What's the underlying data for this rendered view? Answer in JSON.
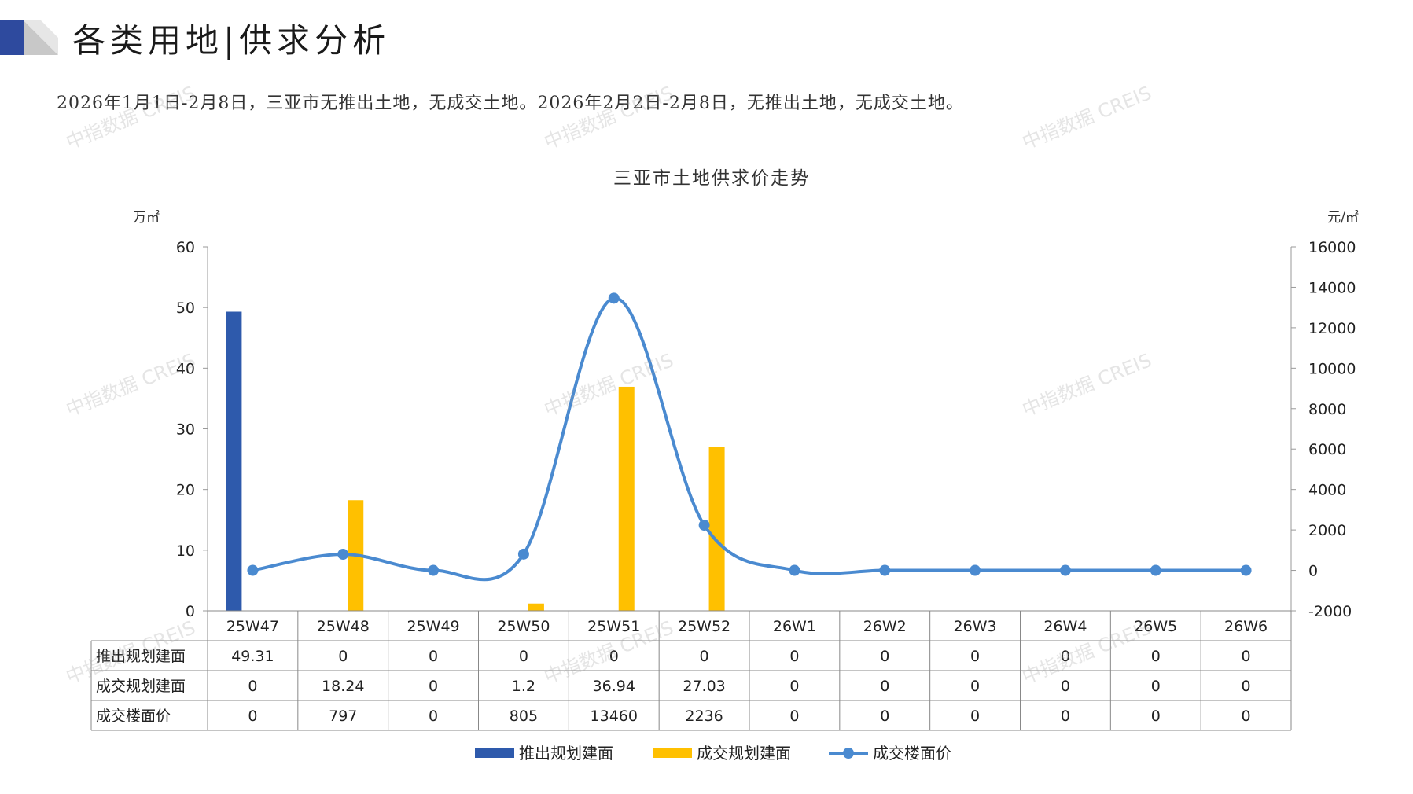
{
  "header": {
    "title": "各类用地|供求分析",
    "summary": "2026年1月1日-2月8日，三亚市无推出土地，无成交土地。2026年2月2日-2月8日，无推出土地，无成交土地。"
  },
  "watermark": "中指数据 CREIS",
  "colors": {
    "supply": "#2e5aac",
    "deal": "#ffc000",
    "price": "#4a8ad0",
    "logo_dark": "#2e4a9e",
    "logo_light": "#c8c8c8"
  },
  "chart_data": {
    "type": "bar",
    "title": "三亚市土地供求价走势",
    "y_left_unit": "万㎡",
    "y_right_unit": "元/㎡",
    "ylim_left": [
      0,
      60
    ],
    "ylim_right": [
      -2000,
      16000
    ],
    "yticks_left": [
      0,
      10,
      20,
      30,
      40,
      50,
      60
    ],
    "yticks_right": [
      -2000,
      0,
      2000,
      4000,
      6000,
      8000,
      10000,
      12000,
      14000,
      16000
    ],
    "categories": [
      "25W47",
      "25W48",
      "25W49",
      "25W50",
      "25W51",
      "25W52",
      "26W1",
      "26W2",
      "26W3",
      "26W4",
      "26W5",
      "26W6"
    ],
    "series": [
      {
        "name": "推出规划建面",
        "type": "bar",
        "axis": "left",
        "values": [
          49.31,
          0,
          0,
          0,
          0,
          0,
          0,
          0,
          0,
          0,
          0,
          0
        ]
      },
      {
        "name": "成交规划建面",
        "type": "bar",
        "axis": "left",
        "values": [
          0,
          18.24,
          0,
          1.2,
          36.94,
          27.03,
          0,
          0,
          0,
          0,
          0,
          0
        ]
      },
      {
        "name": "成交楼面价",
        "type": "line",
        "axis": "right",
        "values": [
          0,
          797,
          0,
          805,
          13460,
          2236,
          0,
          0,
          0,
          0,
          0,
          0
        ]
      }
    ],
    "table_labels": [
      "49.31",
      "0",
      "0",
      "0",
      "0",
      "0",
      "0",
      "0",
      "0",
      "0",
      "0",
      "0",
      "0",
      "18.24",
      "0",
      "1.2",
      "36.94",
      "27.03",
      "0",
      "0",
      "0",
      "0",
      "0",
      "0",
      "0",
      "797",
      "0",
      "805",
      "13460",
      "2236",
      "0",
      "0",
      "0",
      "0",
      "0",
      "0"
    ],
    "legend": "bottom"
  }
}
